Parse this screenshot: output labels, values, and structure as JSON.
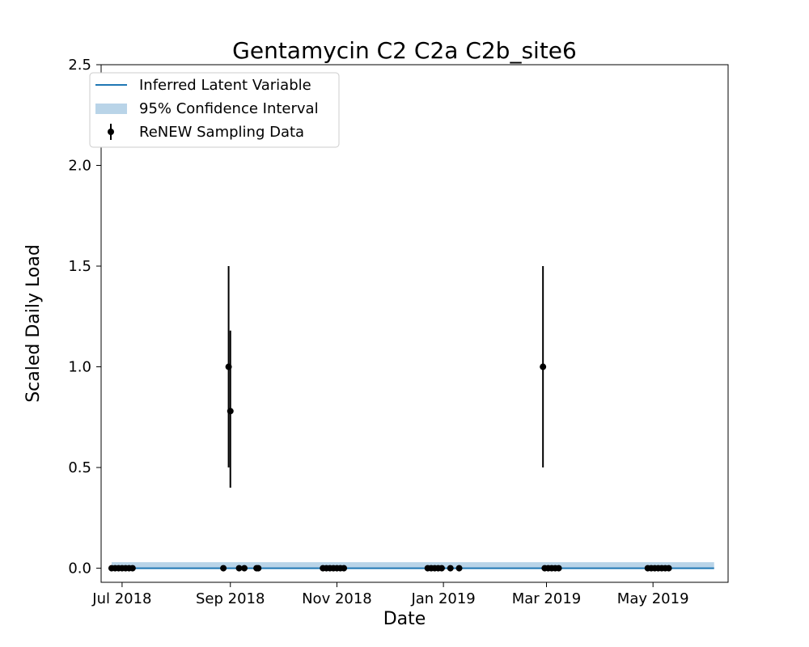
{
  "chart_data": {
    "type": "scatter",
    "title": "Gentamycin C2 C2a C2b_site6",
    "xlabel": "Date",
    "ylabel": "Scaled Daily Load",
    "x_type": "date",
    "xlim": [
      "2018-06-19",
      "2019-06-13"
    ],
    "ylim": [
      -0.07,
      2.5
    ],
    "x_ticks": [
      {
        "date": "2018-07-01",
        "label": "Jul 2018"
      },
      {
        "date": "2018-09-01",
        "label": "Sep 2018"
      },
      {
        "date": "2018-11-01",
        "label": "Nov 2018"
      },
      {
        "date": "2019-01-01",
        "label": "Jan 2019"
      },
      {
        "date": "2019-03-01",
        "label": "Mar 2019"
      },
      {
        "date": "2019-05-01",
        "label": "May 2019"
      }
    ],
    "y_ticks": [
      {
        "value": 0.0,
        "label": "0.0"
      },
      {
        "value": 0.5,
        "label": "0.5"
      },
      {
        "value": 1.0,
        "label": "1.0"
      },
      {
        "value": 1.5,
        "label": "1.5"
      },
      {
        "value": 2.0,
        "label": "2.0"
      },
      {
        "value": 2.5,
        "label": "2.5"
      }
    ],
    "legend": {
      "placement": "upper left",
      "entries": [
        "Inferred Latent Variable",
        "95% Confidence Interval",
        "ReNEW Sampling Data"
      ]
    },
    "colors": {
      "line": "#1f77b4",
      "band": "#b9d4e8",
      "points": "#000000"
    },
    "series": [
      {
        "name": "Inferred Latent Variable",
        "kind": "line",
        "x": [
          "2018-06-25",
          "2019-06-05"
        ],
        "y": [
          0.0,
          0.0
        ]
      },
      {
        "name": "95% Confidence Interval",
        "kind": "band",
        "x": [
          "2018-06-25",
          "2019-06-05"
        ],
        "lower": [
          0.0,
          0.0
        ],
        "upper": [
          0.03,
          0.03
        ]
      },
      {
        "name": "ReNEW Sampling Data",
        "kind": "errorbar",
        "points": [
          {
            "x": "2018-06-25",
            "y": 0.0
          },
          {
            "x": "2018-06-27",
            "y": 0.0
          },
          {
            "x": "2018-06-29",
            "y": 0.0
          },
          {
            "x": "2018-07-01",
            "y": 0.0
          },
          {
            "x": "2018-07-03",
            "y": 0.0
          },
          {
            "x": "2018-07-05",
            "y": 0.0
          },
          {
            "x": "2018-07-07",
            "y": 0.0
          },
          {
            "x": "2018-08-28",
            "y": 0.0
          },
          {
            "x": "2018-08-31",
            "y": 1.0,
            "lo": 0.5,
            "hi": 1.5
          },
          {
            "x": "2018-09-01",
            "y": 0.78,
            "lo": 0.4,
            "hi": 1.18
          },
          {
            "x": "2018-09-06",
            "y": 0.0
          },
          {
            "x": "2018-09-09",
            "y": 0.0
          },
          {
            "x": "2018-09-16",
            "y": 0.0
          },
          {
            "x": "2018-09-17",
            "y": 0.0
          },
          {
            "x": "2018-10-24",
            "y": 0.0
          },
          {
            "x": "2018-10-26",
            "y": 0.0
          },
          {
            "x": "2018-10-28",
            "y": 0.0
          },
          {
            "x": "2018-10-30",
            "y": 0.0
          },
          {
            "x": "2018-11-01",
            "y": 0.0
          },
          {
            "x": "2018-11-03",
            "y": 0.0
          },
          {
            "x": "2018-11-05",
            "y": 0.0
          },
          {
            "x": "2018-12-23",
            "y": 0.0
          },
          {
            "x": "2018-12-25",
            "y": 0.0
          },
          {
            "x": "2018-12-27",
            "y": 0.0
          },
          {
            "x": "2018-12-29",
            "y": 0.0
          },
          {
            "x": "2018-12-31",
            "y": 0.0
          },
          {
            "x": "2019-01-05",
            "y": 0.0
          },
          {
            "x": "2019-01-10",
            "y": 0.0
          },
          {
            "x": "2019-02-27",
            "y": 1.0,
            "lo": 0.5,
            "hi": 1.5
          },
          {
            "x": "2019-02-28",
            "y": 0.0
          },
          {
            "x": "2019-03-02",
            "y": 0.0
          },
          {
            "x": "2019-03-04",
            "y": 0.0
          },
          {
            "x": "2019-03-06",
            "y": 0.0
          },
          {
            "x": "2019-03-08",
            "y": 0.0
          },
          {
            "x": "2019-04-28",
            "y": 0.0
          },
          {
            "x": "2019-04-30",
            "y": 0.0
          },
          {
            "x": "2019-05-02",
            "y": 0.0
          },
          {
            "x": "2019-05-04",
            "y": 0.0
          },
          {
            "x": "2019-05-06",
            "y": 0.0
          },
          {
            "x": "2019-05-08",
            "y": 0.0
          },
          {
            "x": "2019-05-10",
            "y": 0.0
          }
        ]
      }
    ]
  }
}
